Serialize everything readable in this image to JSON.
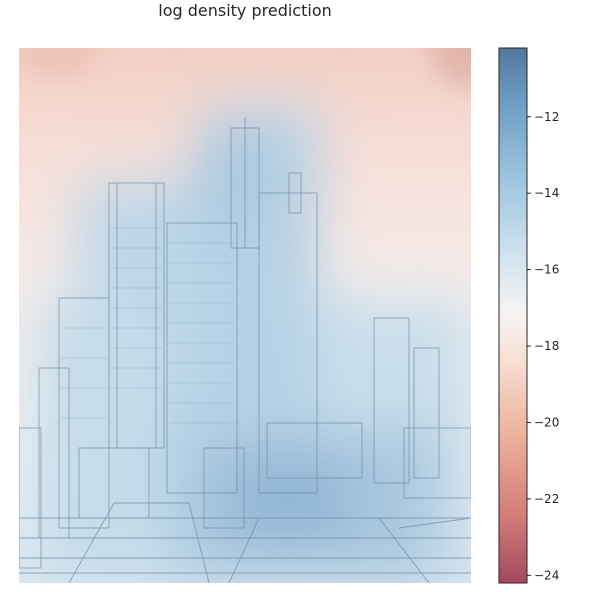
{
  "title": "log density prediction",
  "chart_data": {
    "type": "heatmap",
    "title": "log density prediction",
    "colormap": "RdBu (diverging, red = low, blue = high)",
    "background_image": "line drawing of a futuristic city with tall tower blocks",
    "colorbar": {
      "range": [
        -24.2,
        -10.2
      ],
      "ticks": [
        -12,
        -14,
        -16,
        -18,
        -20,
        -22,
        -24
      ],
      "tick_labels": [
        "−12",
        "−14",
        "−16",
        "−18",
        "−20",
        "−22",
        "−24"
      ]
    },
    "high_density_region": "central tower cluster",
    "low_density_region": "top corners of the image"
  }
}
